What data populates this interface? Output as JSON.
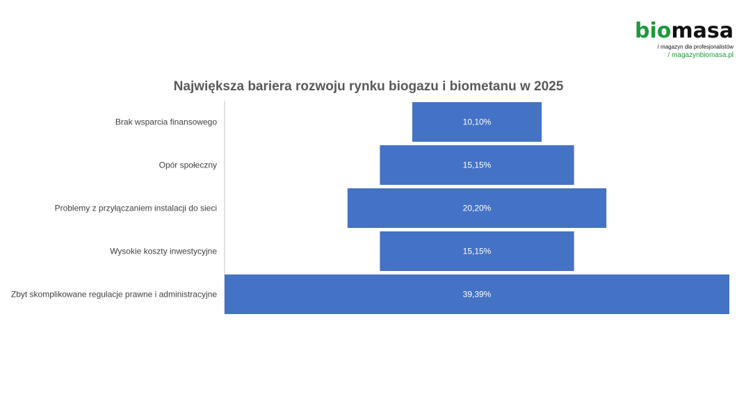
{
  "logo": {
    "bio": "bio",
    "masa": "masa",
    "tagline": "/ magazyn dla profesjonalistów",
    "url": "/ magazynbiomasa.pl"
  },
  "chart_data": {
    "type": "funnel",
    "title": "Największa bariera rozwoju rynku biogazu i biometanu w 2025",
    "categories": [
      "Brak wsparcia finansowego",
      "Opór społeczny",
      "Problemy z przyłączaniem instalacji do sieci",
      "Wysokie koszty inwestycyjne",
      "Zbyt skomplikowane regulacje prawne i administracyjne"
    ],
    "values": [
      10.1,
      15.15,
      20.2,
      15.15,
      39.39
    ],
    "data_labels": [
      "10,10%",
      "15,15%",
      "20,20%",
      "15,15%",
      "39,39%"
    ],
    "unit": "%",
    "color": "#4472C4",
    "grid": false,
    "legend": "none"
  }
}
